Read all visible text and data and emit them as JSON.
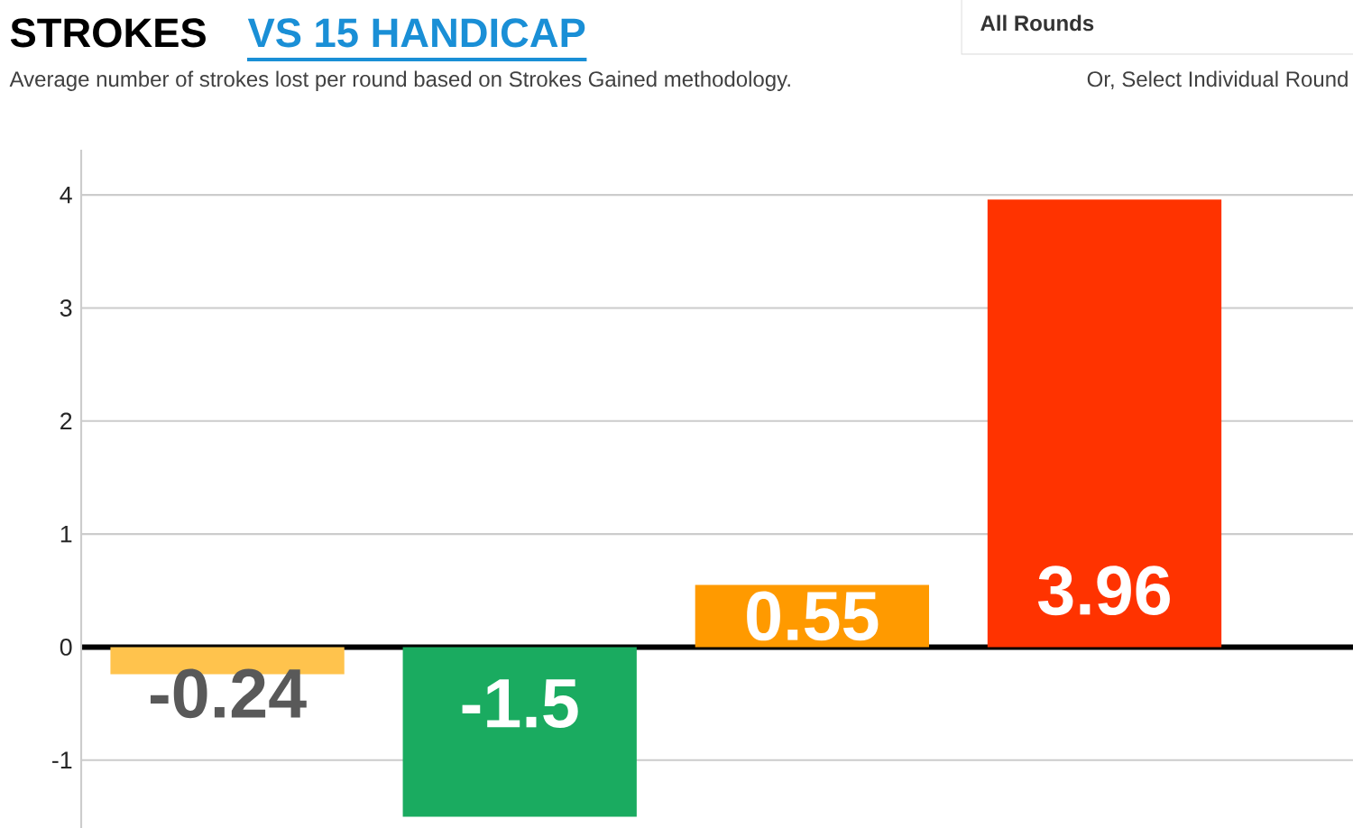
{
  "chart_data": {
    "type": "bar",
    "title": "STROKES",
    "subtitle": "Average number of strokes lost per round based on Strokes Gained methodology.",
    "annotations": [
      "VS 15 HANDICAP",
      "All Rounds",
      "Or, Select Individual Round"
    ],
    "categories": [
      null,
      null,
      null,
      null
    ],
    "values": [
      -0.24,
      -1.5,
      0.55,
      3.96
    ],
    "colors": [
      "#ffc34d",
      "#1aab60",
      "#ff9a00",
      "#ff3300"
    ],
    "value_labels": [
      "-0.24",
      "-1.5",
      "0.55",
      "3.96"
    ],
    "ylim": [
      -1.6,
      4.4
    ],
    "yticks": [
      -1,
      0,
      1,
      2,
      3,
      4
    ],
    "grid": "y"
  }
}
